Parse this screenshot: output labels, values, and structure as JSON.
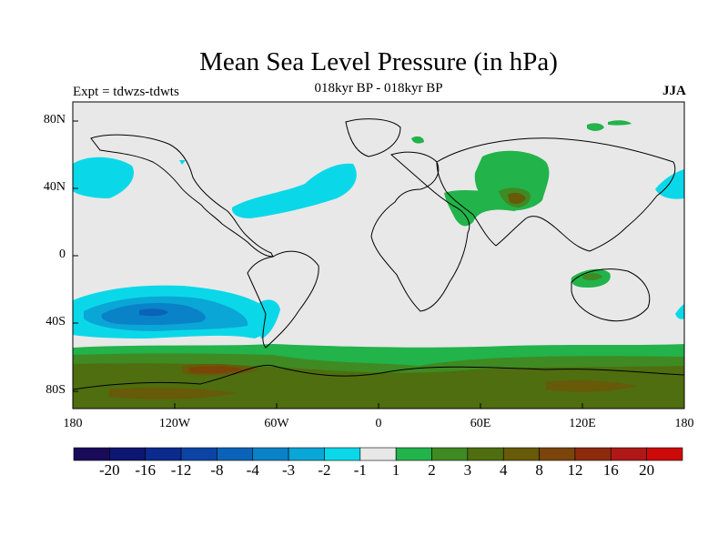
{
  "title": "Mean Sea Level Pressure (in hPa)",
  "subtitle": "018kyr BP - 018kyr BP",
  "experiment": "Expt = tdwzs-tdwts",
  "season": "JJA",
  "lat_labels": [
    "80N",
    "40N",
    "0",
    "40S",
    "80S"
  ],
  "lon_labels": [
    "180",
    "120W",
    "60W",
    "0",
    "60E",
    "120E",
    "180"
  ],
  "colorbar": {
    "colors": [
      "#1a0a5a",
      "#0d1670",
      "#0a2a8e",
      "#0c44a6",
      "#0a63b8",
      "#0a82c7",
      "#0aa6d6",
      "#0ad8e8",
      "#e8e8e8",
      "#22b34a",
      "#3f8a22",
      "#4e6e10",
      "#675a08",
      "#7a440a",
      "#8c2a0c",
      "#b01818",
      "#cc0a0a"
    ],
    "labels": [
      "-20",
      "-16",
      "-12",
      "-8",
      "-4",
      "-3",
      "-2",
      "-1",
      "1",
      "2",
      "3",
      "4",
      "8",
      "12",
      "16",
      "20"
    ]
  },
  "colors": {
    "ocean": "#e8e8e8",
    "cyan": "#0ad8e8",
    "light_blue": "#0aa6d6",
    "blue": "#0a82c7",
    "deep_blue": "#0a63b8",
    "green": "#22b34a",
    "olive_green": "#3f8a22",
    "olive": "#4e6e10",
    "brown": "#675a08",
    "rust": "#7a440a"
  }
}
